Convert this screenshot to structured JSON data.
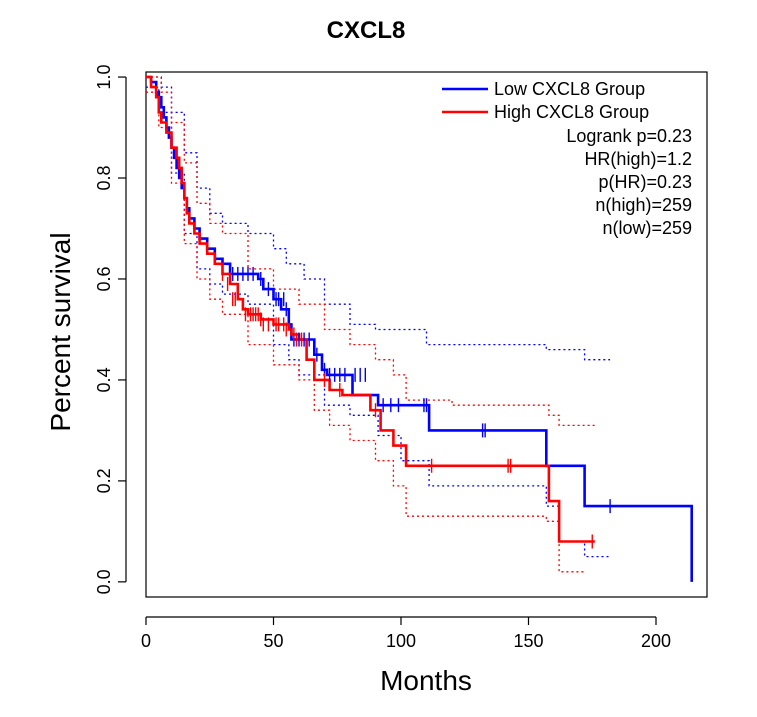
{
  "chart_data": {
    "type": "line",
    "title": "CXCL8",
    "xlabel": "Months",
    "ylabel": "Percent survival",
    "xlim": [
      0,
      220
    ],
    "ylim": [
      -0.03,
      1.01
    ],
    "xticks": [
      "0",
      "50",
      "100",
      "150",
      "200"
    ],
    "yticks": [
      "0.0",
      "0.2",
      "0.4",
      "0.6",
      "0.8",
      "1.0"
    ],
    "legend": {
      "position": "top-right",
      "entries": [
        "Low CXCL8 Group",
        "High CXCL8 Group"
      ],
      "stats": [
        "Logrank p=0.23",
        "HR(high)=1.2",
        "p(HR)=0.23",
        "n(high)=259",
        "n(low)=259"
      ]
    },
    "series": [
      {
        "name": "Low CXCL8 Group",
        "color": "#0000ff",
        "steps": [
          [
            0,
            1.0
          ],
          [
            2,
            0.99
          ],
          [
            4,
            0.97
          ],
          [
            5,
            0.96
          ],
          [
            6,
            0.94
          ],
          [
            7,
            0.92
          ],
          [
            8,
            0.9
          ],
          [
            9,
            0.88
          ],
          [
            10,
            0.86
          ],
          [
            11,
            0.84
          ],
          [
            12,
            0.82
          ],
          [
            13,
            0.8
          ],
          [
            14,
            0.78
          ],
          [
            15,
            0.76
          ],
          [
            16,
            0.74
          ],
          [
            17,
            0.72
          ],
          [
            19,
            0.7
          ],
          [
            21,
            0.68
          ],
          [
            24,
            0.66
          ],
          [
            27,
            0.64
          ],
          [
            30,
            0.63
          ],
          [
            33,
            0.61
          ],
          [
            44,
            0.6
          ],
          [
            46,
            0.58
          ],
          [
            50,
            0.56
          ],
          [
            53,
            0.54
          ],
          [
            56,
            0.51
          ],
          [
            57,
            0.48
          ],
          [
            66,
            0.45
          ],
          [
            69,
            0.42
          ],
          [
            71,
            0.41
          ],
          [
            81,
            0.37
          ],
          [
            91,
            0.35
          ],
          [
            111,
            0.3
          ],
          [
            157,
            0.23
          ],
          [
            172,
            0.15
          ],
          [
            214,
            0.0
          ]
        ],
        "end": 214,
        "censor": [
          [
            34,
            0.61
          ],
          [
            36,
            0.61
          ],
          [
            38,
            0.61
          ],
          [
            40,
            0.61
          ],
          [
            42,
            0.61
          ],
          [
            45,
            0.6
          ],
          [
            48,
            0.58
          ],
          [
            51,
            0.56
          ],
          [
            52,
            0.56
          ],
          [
            54,
            0.56
          ],
          [
            55,
            0.54
          ],
          [
            58,
            0.48
          ],
          [
            60,
            0.48
          ],
          [
            62,
            0.48
          ],
          [
            64,
            0.48
          ],
          [
            67,
            0.45
          ],
          [
            70,
            0.42
          ],
          [
            72,
            0.41
          ],
          [
            74,
            0.41
          ],
          [
            76,
            0.41
          ],
          [
            78,
            0.41
          ],
          [
            82,
            0.41
          ],
          [
            84,
            0.41
          ],
          [
            86,
            0.41
          ],
          [
            93,
            0.35
          ],
          [
            96,
            0.35
          ],
          [
            99,
            0.35
          ],
          [
            109,
            0.35
          ],
          [
            110,
            0.35
          ],
          [
            132,
            0.3
          ],
          [
            133,
            0.3
          ],
          [
            182,
            0.15
          ]
        ],
        "ci_upper": [
          [
            0,
            1.0
          ],
          [
            4,
            1.0
          ],
          [
            6,
            0.98
          ],
          [
            10,
            0.93
          ],
          [
            15,
            0.85
          ],
          [
            20,
            0.78
          ],
          [
            25,
            0.73
          ],
          [
            30,
            0.71
          ],
          [
            40,
            0.69
          ],
          [
            50,
            0.66
          ],
          [
            55,
            0.63
          ],
          [
            62,
            0.6
          ],
          [
            70,
            0.55
          ],
          [
            80,
            0.51
          ],
          [
            90,
            0.5
          ],
          [
            110,
            0.47
          ],
          [
            157,
            0.46
          ],
          [
            172,
            0.44
          ],
          [
            182,
            0.44
          ]
        ],
        "ci_lower": [
          [
            0,
            0.98
          ],
          [
            5,
            0.93
          ],
          [
            10,
            0.81
          ],
          [
            15,
            0.69
          ],
          [
            20,
            0.62
          ],
          [
            25,
            0.59
          ],
          [
            30,
            0.57
          ],
          [
            40,
            0.55
          ],
          [
            50,
            0.47
          ],
          [
            56,
            0.44
          ],
          [
            60,
            0.41
          ],
          [
            70,
            0.35
          ],
          [
            80,
            0.33
          ],
          [
            91,
            0.29
          ],
          [
            100,
            0.24
          ],
          [
            111,
            0.19
          ],
          [
            157,
            0.15
          ],
          [
            162,
            0.08
          ],
          [
            172,
            0.05
          ],
          [
            182,
            0.05
          ]
        ]
      },
      {
        "name": "High CXCL8 Group",
        "color": "#ff0000",
        "steps": [
          [
            0,
            1.0
          ],
          [
            2,
            0.98
          ],
          [
            4,
            0.96
          ],
          [
            5,
            0.93
          ],
          [
            6,
            0.91
          ],
          [
            8,
            0.89
          ],
          [
            10,
            0.86
          ],
          [
            12,
            0.84
          ],
          [
            13,
            0.82
          ],
          [
            14,
            0.79
          ],
          [
            15,
            0.76
          ],
          [
            16,
            0.73
          ],
          [
            17,
            0.71
          ],
          [
            19,
            0.69
          ],
          [
            21,
            0.67
          ],
          [
            24,
            0.65
          ],
          [
            27,
            0.63
          ],
          [
            30,
            0.61
          ],
          [
            33,
            0.59
          ],
          [
            36,
            0.56
          ],
          [
            38,
            0.54
          ],
          [
            40,
            0.53
          ],
          [
            45,
            0.52
          ],
          [
            50,
            0.51
          ],
          [
            56,
            0.5
          ],
          [
            57,
            0.49
          ],
          [
            60,
            0.48
          ],
          [
            63,
            0.44
          ],
          [
            66,
            0.4
          ],
          [
            72,
            0.38
          ],
          [
            77,
            0.37
          ],
          [
            88,
            0.34
          ],
          [
            92,
            0.3
          ],
          [
            97,
            0.27
          ],
          [
            102,
            0.23
          ],
          [
            158,
            0.16
          ],
          [
            162,
            0.08
          ],
          [
            176,
            0.08
          ]
        ],
        "end": 176,
        "censor": [
          [
            30,
            0.61
          ],
          [
            32,
            0.59
          ],
          [
            34,
            0.56
          ],
          [
            35,
            0.56
          ],
          [
            39,
            0.53
          ],
          [
            41,
            0.53
          ],
          [
            42,
            0.53
          ],
          [
            43,
            0.53
          ],
          [
            44,
            0.53
          ],
          [
            45,
            0.52
          ],
          [
            46,
            0.51
          ],
          [
            48,
            0.51
          ],
          [
            51,
            0.51
          ],
          [
            52,
            0.51
          ],
          [
            54,
            0.51
          ],
          [
            55,
            0.5
          ],
          [
            58,
            0.49
          ],
          [
            59,
            0.48
          ],
          [
            61,
            0.48
          ],
          [
            70,
            0.4
          ],
          [
            76,
            0.38
          ],
          [
            90,
            0.34
          ],
          [
            112,
            0.23
          ],
          [
            142,
            0.23
          ],
          [
            143,
            0.23
          ],
          [
            175,
            0.08
          ]
        ],
        "ci_upper": [
          [
            0,
            1.0
          ],
          [
            4,
            1.0
          ],
          [
            6,
            0.97
          ],
          [
            10,
            0.91
          ],
          [
            15,
            0.83
          ],
          [
            20,
            0.75
          ],
          [
            25,
            0.71
          ],
          [
            30,
            0.69
          ],
          [
            40,
            0.62
          ],
          [
            50,
            0.58
          ],
          [
            60,
            0.55
          ],
          [
            70,
            0.5
          ],
          [
            80,
            0.47
          ],
          [
            90,
            0.44
          ],
          [
            97,
            0.41
          ],
          [
            102,
            0.36
          ],
          [
            120,
            0.35
          ],
          [
            158,
            0.33
          ],
          [
            162,
            0.31
          ],
          [
            172,
            0.31
          ],
          [
            176,
            0.31
          ]
        ],
        "ci_lower": [
          [
            0,
            0.97
          ],
          [
            5,
            0.9
          ],
          [
            10,
            0.79
          ],
          [
            15,
            0.67
          ],
          [
            20,
            0.6
          ],
          [
            25,
            0.56
          ],
          [
            30,
            0.53
          ],
          [
            40,
            0.47
          ],
          [
            50,
            0.43
          ],
          [
            60,
            0.4
          ],
          [
            66,
            0.34
          ],
          [
            72,
            0.31
          ],
          [
            80,
            0.28
          ],
          [
            90,
            0.24
          ],
          [
            97,
            0.19
          ],
          [
            102,
            0.13
          ],
          [
            120,
            0.13
          ],
          [
            157,
            0.12
          ],
          [
            162,
            0.02
          ],
          [
            172,
            0.02
          ]
        ]
      }
    ]
  }
}
